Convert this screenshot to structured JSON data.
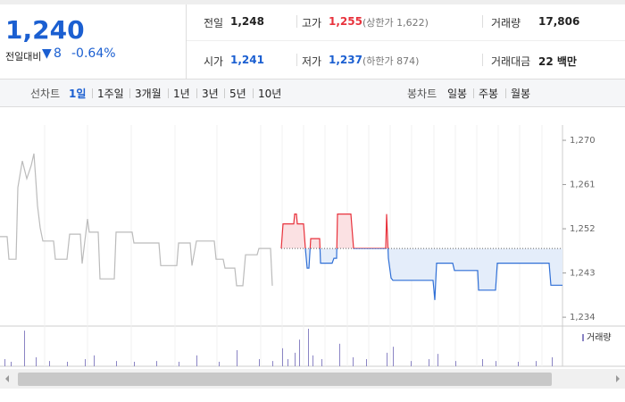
{
  "quote": {
    "price": "1,240",
    "change_label": "전일대비",
    "change": "8",
    "change_rate": "-0.64%",
    "stats": [
      {
        "label": "전일",
        "value": "1,248"
      },
      {
        "label": "고가",
        "value": "1,255",
        "extra": "(상한가 1,622)"
      },
      {
        "label": "거래량",
        "value": "17,806"
      },
      {
        "label": "시가",
        "value": "1,241"
      },
      {
        "label": "저가",
        "value": "1,237",
        "extra": "(하한가 874)"
      },
      {
        "label": "거래대금",
        "value": "22 백만"
      }
    ]
  },
  "tabs": {
    "line_label": "선차트",
    "line": [
      "1일",
      "1주일",
      "3개월",
      "1년",
      "3년",
      "5년",
      "10년"
    ],
    "candle_label": "봉차트",
    "candle": [
      "일봉",
      "주봉",
      "월봉"
    ]
  },
  "chart_data": {
    "type": "line",
    "baseline": 1248,
    "ylim": [
      1232.2,
      1273.1
    ],
    "yticks": [
      {
        "value": 1270,
        "label": "1,270"
      },
      {
        "value": 1261,
        "label": "1,261"
      },
      {
        "value": 1252,
        "label": "1,252"
      },
      {
        "value": 1243,
        "label": "1,243"
      },
      {
        "value": 1234,
        "label": "1,234"
      }
    ],
    "xlim": [
      0,
      630
    ],
    "series": [
      {
        "color": "#bbbbbb",
        "x": [
          0,
          8,
          10,
          18,
          20,
          25,
          30,
          35,
          38,
          40,
          42,
          45,
          48,
          60,
          62,
          75,
          78,
          90,
          92,
          98,
          100,
          110,
          112,
          128,
          130,
          148,
          150,
          178,
          180,
          198,
          200,
          213,
          215,
          220,
          240,
          242,
          250,
          252,
          263,
          265,
          272,
          275,
          288,
          290,
          303,
          305
        ],
        "values": [
          1250.4,
          1250.4,
          1245.8,
          1245.8,
          1260.4,
          1265.8,
          1262.2,
          1264.9,
          1267.3,
          1262.2,
          1256.7,
          1252.2,
          1249.5,
          1249.5,
          1245.8,
          1245.8,
          1250.9,
          1250.9,
          1244.9,
          1254,
          1251.3,
          1251.3,
          1241.8,
          1241.8,
          1251.3,
          1251.3,
          1249.1,
          1249.1,
          1244.5,
          1244.5,
          1249.1,
          1249.1,
          1244.5,
          1249.5,
          1249.5,
          1245.8,
          1245.8,
          1244,
          1244,
          1240.4,
          1240.4,
          1246.7,
          1246.7,
          1248,
          1248,
          1240.4
        ]
      },
      {
        "color_up": "#e8323c",
        "color_down": "#2f6fd6",
        "fill_up": "#fbe1e3",
        "fill_down": "#e4edfa",
        "x": [
          315,
          317,
          329,
          330,
          332,
          333,
          340,
          342,
          344,
          346,
          348,
          358,
          359,
          372,
          374,
          377,
          378,
          393,
          396,
          432,
          433,
          435,
          438,
          440,
          485,
          487,
          489,
          507,
          509,
          535,
          536,
          555,
          557,
          615,
          617,
          630
        ],
        "values": [
          1248,
          1253,
          1253,
          1255,
          1255,
          1253,
          1253,
          1248,
          1244,
          1244,
          1250,
          1250,
          1245,
          1245,
          1246,
          1246,
          1255,
          1255,
          1248,
          1248,
          1255,
          1246,
          1242,
          1241.5,
          1241.5,
          1237.5,
          1245,
          1245,
          1243.5,
          1243.5,
          1239.5,
          1239.5,
          1245,
          1245,
          1240.5,
          1240.5
        ]
      }
    ],
    "volume": {
      "name": "거래량",
      "color": "#8a84c4",
      "ylim": [
        0,
        100
      ],
      "x": [
        5,
        12,
        27,
        40,
        55,
        75,
        95,
        105,
        130,
        150,
        175,
        200,
        220,
        245,
        265,
        290,
        305,
        316,
        322,
        330,
        335,
        345,
        350,
        360,
        380,
        395,
        410,
        433,
        440,
        460,
        480,
        490,
        510,
        540,
        555,
        580,
        600,
        618
      ],
      "values": [
        19,
        12,
        95,
        24,
        14,
        12,
        19,
        29,
        14,
        12,
        14,
        12,
        29,
        12,
        43,
        19,
        14,
        48,
        19,
        36,
        71,
        100,
        29,
        19,
        60,
        24,
        19,
        36,
        52,
        14,
        19,
        33,
        14,
        19,
        14,
        12,
        14,
        24
      ]
    }
  }
}
